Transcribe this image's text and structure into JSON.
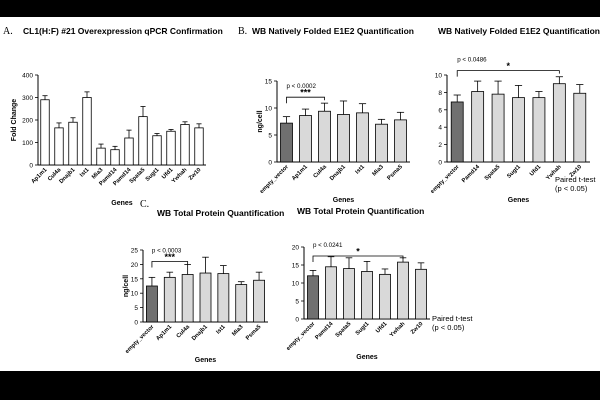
{
  "panel_labels": {
    "a": "A.",
    "b": "B.",
    "c": "C."
  },
  "titles": {
    "a": "CL1(H:F) #21 Overexpression qPCR Confirmation",
    "b1": "WB Natively Folded E1E2 Quantification",
    "b2": "WB Natively Folded E1E2 Quantification",
    "c1": "WB Total Protein Quantification",
    "c2": "WB Total Protein Quantification"
  },
  "notes": {
    "b_line1": "Paired t-test",
    "b_line2": "(p < 0.05)",
    "c_line1": "Paired t-test",
    "c_line2": "(p < 0.05)"
  },
  "colors": {
    "bar_dark": "#707070",
    "bar_light": "#d9d9d9",
    "white_bar": "#ffffff",
    "axis": "#000000"
  },
  "chart_data": [
    {
      "id": "a",
      "type": "bar",
      "ylabel": "Fold Change",
      "xlabel": "Genes",
      "ylim": [
        0,
        400
      ],
      "yticks": [
        0,
        100,
        200,
        300,
        400
      ],
      "categories": [
        "Ap1m1",
        "Cul4a",
        "Dnajb1",
        "Ist1",
        "Mia3",
        "Pamd14",
        "Pamd14",
        "Spata5",
        "Sugt1",
        "Ufd1",
        "Ywhah",
        "Zw10"
      ],
      "values": [
        290,
        165,
        190,
        300,
        75,
        68,
        120,
        215,
        130,
        150,
        180,
        165
      ],
      "errors": [
        18,
        22,
        20,
        25,
        18,
        15,
        35,
        45,
        10,
        8,
        12,
        18
      ],
      "fills": [
        "white",
        "white",
        "white",
        "white",
        "white",
        "white",
        "white",
        "white",
        "white",
        "white",
        "white",
        "white"
      ]
    },
    {
      "id": "b1",
      "type": "bar",
      "ylabel": "ng/cell",
      "xlabel": "Genes",
      "ylim": [
        0,
        15
      ],
      "yticks": [
        0,
        5,
        10,
        15
      ],
      "categories": [
        "empty_vector",
        "Ap1m1",
        "Cul4a",
        "Dnajb1",
        "Ist1",
        "Mia3",
        "Psma5"
      ],
      "values": [
        7.2,
        8.6,
        9.4,
        8.8,
        9.1,
        7.0,
        7.8
      ],
      "errors": [
        1.2,
        1.2,
        1.5,
        2.5,
        1.7,
        0.9,
        1.4
      ],
      "fills": [
        "dark",
        "light",
        "light",
        "light",
        "light",
        "light",
        "light"
      ],
      "annotation": {
        "p": "p < 0.0002",
        "stars": "***",
        "from": 0,
        "to": 2,
        "y": 12
      }
    },
    {
      "id": "b2",
      "type": "bar",
      "ylabel": "",
      "xlabel": "Genes",
      "ylim": [
        0,
        10
      ],
      "yticks": [
        0,
        2,
        4,
        6,
        8,
        10
      ],
      "categories": [
        "empty_vector",
        "Pamd14",
        "Spata5",
        "Sugt1",
        "Ufd1",
        "Ywhah",
        "Zw10"
      ],
      "values": [
        6.9,
        8.1,
        7.8,
        7.4,
        7.4,
        9.0,
        7.9
      ],
      "errors": [
        0.8,
        1.2,
        1.5,
        1.4,
        0.7,
        0.8,
        1.0
      ],
      "fills": [
        "dark",
        "light",
        "light",
        "light",
        "light",
        "light",
        "light"
      ],
      "annotation": {
        "p": "p < 0.0486",
        "stars": "*",
        "from": 0,
        "to": 5,
        "y": 10.5
      }
    },
    {
      "id": "c1",
      "type": "bar",
      "ylabel": "ng/cell",
      "xlabel": "Genes",
      "ylim": [
        0,
        25
      ],
      "yticks": [
        0,
        5,
        10,
        15,
        20,
        25
      ],
      "categories": [
        "empty_vector",
        "Ap1m1",
        "Cul4a",
        "Dnajb1",
        "Ist1",
        "Mia3",
        "Psma5"
      ],
      "values": [
        12.5,
        15.5,
        16.5,
        17.0,
        16.8,
        13.0,
        14.5
      ],
      "errors": [
        3.0,
        1.8,
        3.5,
        5.5,
        2.8,
        1.0,
        2.8
      ],
      "fills": [
        "dark",
        "light",
        "light",
        "light",
        "light",
        "light",
        "light"
      ],
      "annotation": {
        "p": "p < 0.0003",
        "stars": "***",
        "from": 0,
        "to": 2,
        "y": 21
      }
    },
    {
      "id": "c2",
      "type": "bar",
      "ylabel": "",
      "xlabel": "Genes",
      "ylim": [
        0,
        20
      ],
      "yticks": [
        0,
        5,
        10,
        15,
        20
      ],
      "categories": [
        "empty_vector",
        "Pamd14",
        "Spata5",
        "Sugt1",
        "Ufd1",
        "Ywhah",
        "Zw10"
      ],
      "values": [
        12.0,
        14.5,
        14.0,
        13.2,
        12.4,
        15.8,
        13.8
      ],
      "errors": [
        1.5,
        2.8,
        3.0,
        2.8,
        1.5,
        1.2,
        1.8
      ],
      "fills": [
        "dark",
        "light",
        "light",
        "light",
        "light",
        "light",
        "light"
      ],
      "annotation": {
        "p": "p < 0.0241",
        "stars": "*",
        "from": 0,
        "to": 5,
        "y": 17.5
      }
    }
  ]
}
